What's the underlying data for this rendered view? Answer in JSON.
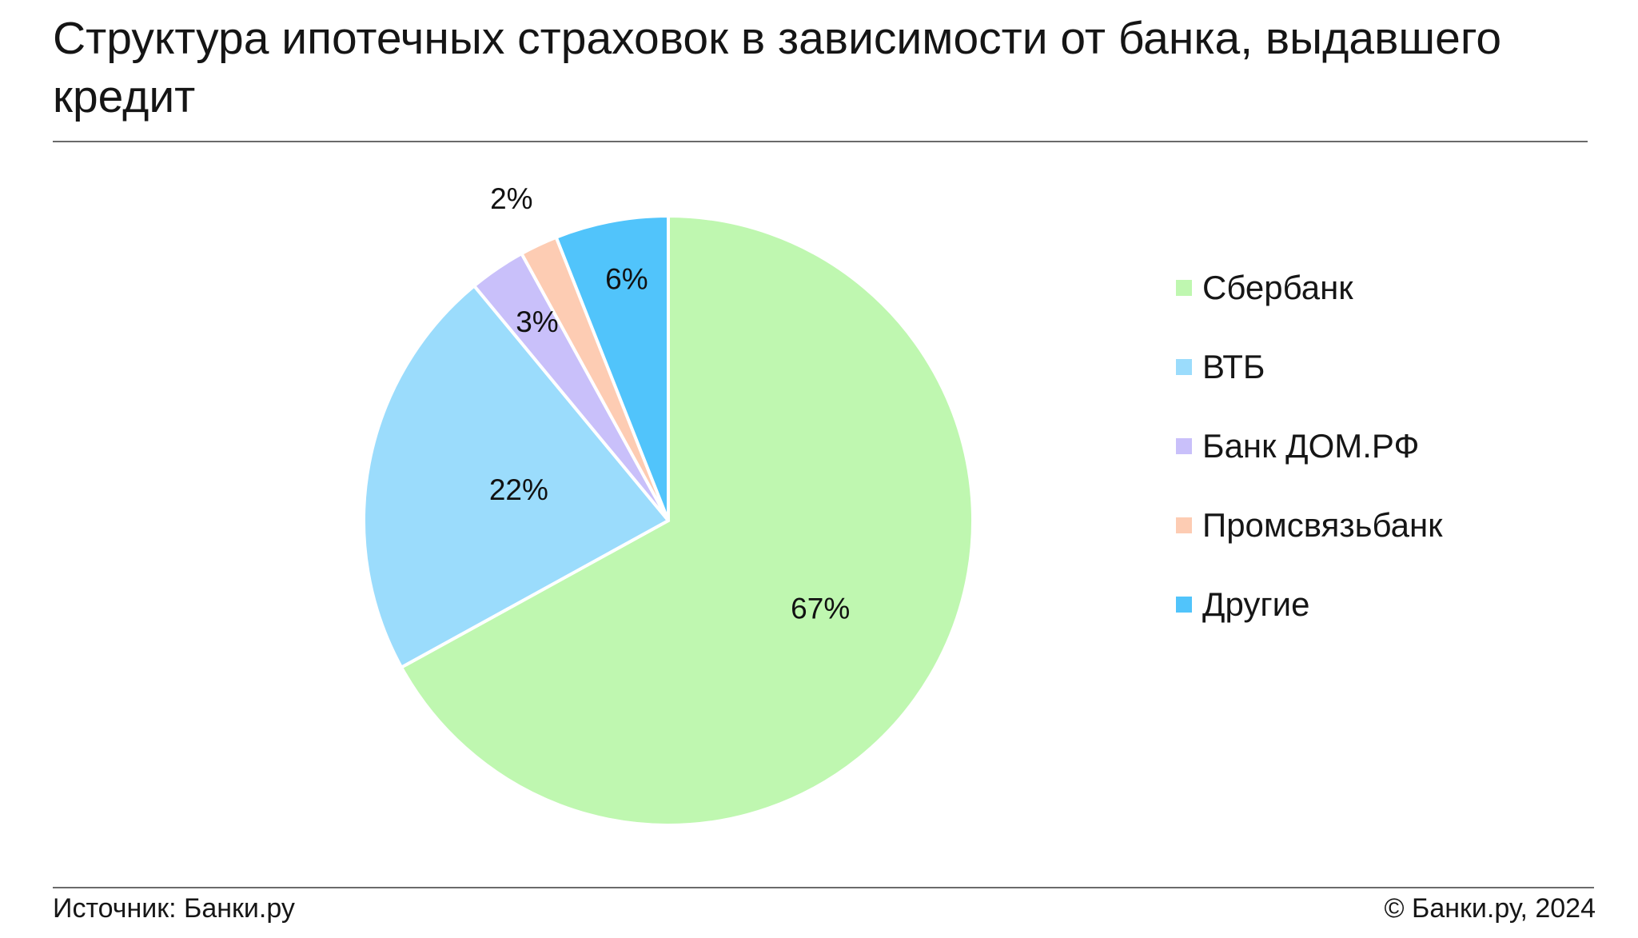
{
  "header": {
    "title": "Структура ипотечных страховок в зависимости от банка, выдавшего кредит"
  },
  "chart_data": {
    "type": "pie",
    "title": "Структура ипотечных страховок в зависимости от банка, выдавшего кредит",
    "categories": [
      "Сбербанк",
      "ВТБ",
      "Банк ДОМ.РФ",
      "Промсвязьбанк",
      "Другие"
    ],
    "values": [
      67,
      22,
      3,
      2,
      6
    ],
    "labels": [
      "67%",
      "22%",
      "3%",
      "2%",
      "6%"
    ],
    "colors": [
      "#bff7b0",
      "#9bdcfc",
      "#c9c0fa",
      "#fdccb3",
      "#51c4fb"
    ],
    "start": "12 o'clock, clockwise",
    "legend": "right"
  },
  "legend": {
    "items": [
      {
        "label": "Сбербанк",
        "color": "#bff7b0"
      },
      {
        "label": "ВТБ",
        "color": "#9bdcfc"
      },
      {
        "label": "Банк ДОМ.РФ",
        "color": "#c9c0fa"
      },
      {
        "label": "Промсвязьбанк",
        "color": "#fdccb3"
      },
      {
        "label": "Другие",
        "color": "#51c4fb"
      }
    ]
  },
  "footer": {
    "source": "Источник: Банки.ру",
    "copyright": "© Банки.ру, 2024"
  }
}
